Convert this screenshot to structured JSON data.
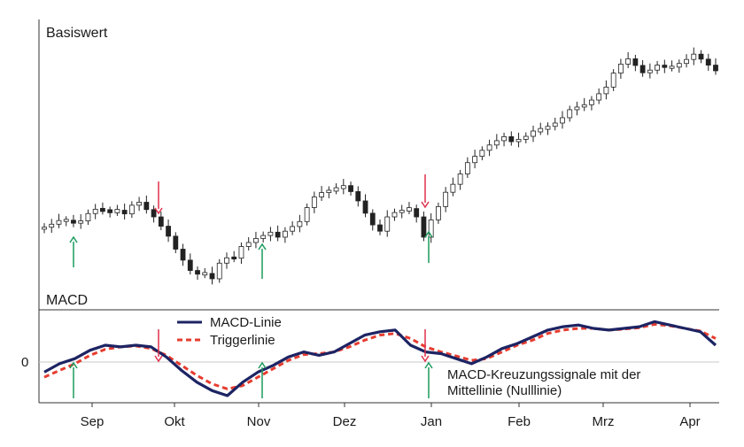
{
  "chart_data": [
    {
      "type": "candlestick",
      "panel_label": "Basiswert",
      "description_note": "",
      "x_labels": [
        "Sep",
        "Okt",
        "Nov",
        "Dez",
        "Jan",
        "Feb",
        "Mrz",
        "Apr"
      ],
      "close_series": [
        49.5,
        50.4,
        51.5,
        51.6,
        50.7,
        51.4,
        53.6,
        54.9,
        54.5,
        54.1,
        54.6,
        53.5,
        56.1,
        57.0,
        54.8,
        52.6,
        49.8,
        46.8,
        42.9,
        39.6,
        36.5,
        35.4,
        35.6,
        34.0,
        38.7,
        40.3,
        40.2,
        43.7,
        44.9,
        46.1,
        47.0,
        48.0,
        46.5,
        48.3,
        49.7,
        51.2,
        55.4,
        58.6,
        59.9,
        60.6,
        61.1,
        62.0,
        60.2,
        57.4,
        53.7,
        50.2,
        48.3,
        52.6,
        53.9,
        54.6,
        55.1,
        52.6,
        46.5,
        51.7,
        55.7,
        60.0,
        62.4,
        65.5,
        68.9,
        70.8,
        72.6,
        74.2,
        75.5,
        76.7,
        75.2,
        75.9,
        76.8,
        78.4,
        78.9,
        79.8,
        80.8,
        82.4,
        84.8,
        85.6,
        86.3,
        87.7,
        89.6,
        91.6,
        95.8,
        98.5,
        100.1,
        98.1,
        95.9,
        96.7,
        98.2,
        97.5,
        97.6,
        98.7,
        99.9,
        101.5,
        100.0,
        98.2,
        96.5
      ],
      "buy_signal_arrows": [
        "Sep",
        "Nov",
        "Jan"
      ],
      "sell_signal_arrows": [
        "Okt",
        "Jan"
      ],
      "colors": {
        "buy": "#1a9a5c",
        "sell": "#e0314b",
        "candle": "#222222"
      }
    },
    {
      "type": "line",
      "panel_label": "MACD",
      "y_tick_labels": [
        "0"
      ],
      "x_labels": [
        "Sep",
        "Okt",
        "Nov",
        "Dez",
        "Jan",
        "Feb",
        "Mrz",
        "Apr"
      ],
      "series": [
        {
          "name": "MACD-Linie",
          "color": "#1d2463",
          "style": "solid",
          "values": [
            -0.3,
            -0.05,
            0.1,
            0.35,
            0.5,
            0.45,
            0.5,
            0.45,
            0.15,
            -0.25,
            -0.6,
            -0.85,
            -1.0,
            -0.6,
            -0.3,
            -0.1,
            0.15,
            0.3,
            0.2,
            0.3,
            0.55,
            0.8,
            0.9,
            0.95,
            0.5,
            0.3,
            0.25,
            0.1,
            -0.05,
            0.15,
            0.4,
            0.55,
            0.75,
            0.95,
            1.05,
            1.1,
            1.0,
            0.95,
            1.0,
            1.05,
            1.2,
            1.1,
            1.0,
            0.9,
            0.5
          ]
        },
        {
          "name": "Triggerlinie",
          "color": "#e63c2f",
          "style": "dashed",
          "values": [
            -0.45,
            -0.25,
            -0.05,
            0.2,
            0.38,
            0.45,
            0.48,
            0.4,
            0.2,
            -0.1,
            -0.4,
            -0.65,
            -0.8,
            -0.7,
            -0.45,
            -0.2,
            0.05,
            0.22,
            0.25,
            0.3,
            0.45,
            0.65,
            0.8,
            0.85,
            0.7,
            0.45,
            0.3,
            0.18,
            0.05,
            0.1,
            0.3,
            0.5,
            0.65,
            0.85,
            0.95,
            1.0,
            1.0,
            0.95,
            0.98,
            1.02,
            1.12,
            1.08,
            1.0,
            0.92,
            0.7
          ]
        }
      ],
      "annotation": "MACD-Kreuzungssignale mit der Mittellinie (Nulllinie)"
    }
  ]
}
